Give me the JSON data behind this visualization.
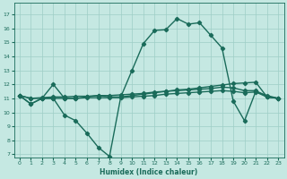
{
  "xlabel": "Humidex (Indice chaleur)",
  "xlim": [
    -0.5,
    23.5
  ],
  "ylim": [
    6.8,
    17.8
  ],
  "yticks": [
    7,
    8,
    9,
    10,
    11,
    12,
    13,
    14,
    15,
    16,
    17
  ],
  "xticks": [
    0,
    1,
    2,
    3,
    4,
    5,
    6,
    7,
    8,
    9,
    10,
    11,
    12,
    13,
    14,
    15,
    16,
    17,
    18,
    19,
    20,
    21,
    22,
    23
  ],
  "bg_color": "#c5e8e2",
  "grid_color": "#9ecec6",
  "line_color": "#1a6b5a",
  "line_width": 1.0,
  "marker": "D",
  "marker_size": 2.2,
  "series": [
    {
      "x": [
        0,
        1,
        2,
        3,
        4,
        5,
        6,
        7,
        8,
        9,
        10,
        11,
        12,
        13,
        14,
        15,
        16,
        17,
        18,
        19,
        20,
        21,
        22,
        23
      ],
      "y": [
        11.2,
        10.6,
        11.0,
        11.0,
        9.8,
        9.4,
        8.5,
        7.5,
        6.85,
        11.1,
        13.0,
        14.9,
        15.85,
        15.9,
        16.7,
        16.3,
        16.4,
        15.5,
        14.6,
        10.8,
        9.4,
        11.5,
        11.2,
        11.0
      ]
    },
    {
      "x": [
        0,
        1,
        2,
        3,
        4,
        5,
        6,
        7,
        8,
        9,
        10,
        11,
        12,
        13,
        14,
        15,
        16,
        17,
        18,
        19,
        20,
        21,
        22,
        23
      ],
      "y": [
        11.2,
        10.6,
        11.0,
        12.0,
        11.0,
        11.0,
        11.1,
        11.2,
        11.1,
        11.1,
        11.2,
        11.3,
        11.4,
        11.5,
        11.55,
        11.6,
        11.65,
        11.7,
        11.8,
        11.75,
        11.55,
        11.55,
        11.1,
        11.0
      ]
    },
    {
      "x": [
        0,
        1,
        2,
        3,
        4,
        5,
        6,
        7,
        8,
        9,
        10,
        11,
        12,
        13,
        14,
        15,
        16,
        17,
        18,
        19,
        20,
        21,
        22,
        23
      ],
      "y": [
        11.2,
        11.0,
        11.05,
        11.1,
        11.1,
        11.15,
        11.15,
        11.2,
        11.2,
        11.25,
        11.3,
        11.35,
        11.45,
        11.5,
        11.6,
        11.65,
        11.75,
        11.85,
        11.95,
        12.05,
        12.1,
        12.15,
        11.1,
        11.0
      ]
    },
    {
      "x": [
        0,
        1,
        2,
        3,
        4,
        5,
        6,
        7,
        8,
        9,
        10,
        11,
        12,
        13,
        14,
        15,
        16,
        17,
        18,
        19,
        20,
        21,
        22,
        23
      ],
      "y": [
        11.2,
        11.0,
        11.0,
        11.0,
        11.0,
        11.0,
        11.05,
        11.05,
        11.05,
        11.05,
        11.1,
        11.15,
        11.2,
        11.3,
        11.35,
        11.4,
        11.45,
        11.5,
        11.55,
        11.5,
        11.4,
        11.45,
        11.1,
        11.0
      ]
    }
  ]
}
